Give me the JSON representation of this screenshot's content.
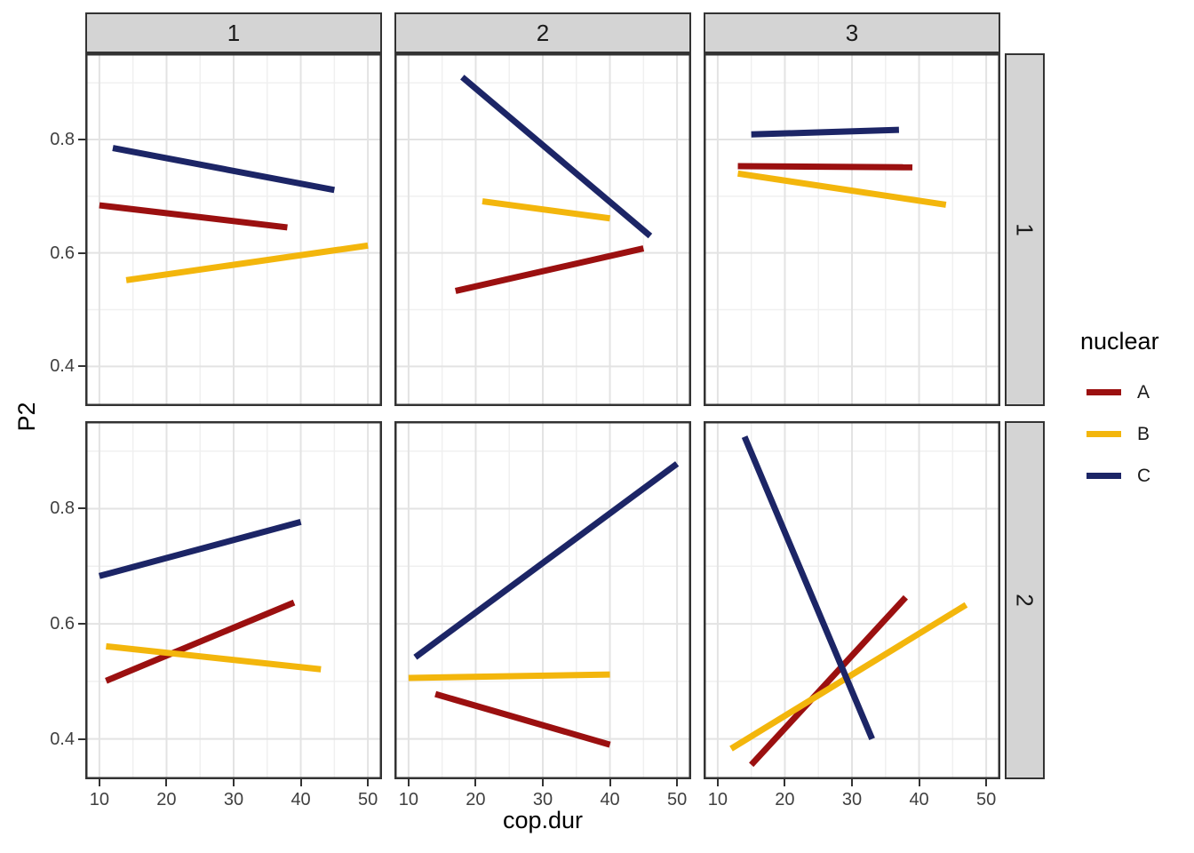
{
  "chart_data": {
    "type": "line",
    "title": "",
    "xlabel": "cop.dur",
    "ylabel": "P2",
    "facet_cols": [
      "1",
      "2",
      "3"
    ],
    "facet_rows": [
      "1",
      "2"
    ],
    "xlim": [
      7.9,
      52.1
    ],
    "ylim": [
      0.33,
      0.952
    ],
    "x_ticks": [
      10,
      20,
      30,
      40,
      50
    ],
    "x_tick_labels": [
      "10",
      "20",
      "30",
      "40",
      "50"
    ],
    "x_minor": [
      15,
      25,
      35,
      45
    ],
    "y_ticks": [
      0.4,
      0.6,
      0.8
    ],
    "y_tick_labels": [
      "0.4",
      "0.6",
      "0.8"
    ],
    "y_minor": [
      0.5,
      0.7,
      0.9
    ],
    "grid": true,
    "colors": {
      "grid_major": "#e3e3e3",
      "grid_minor": "#f0f0f0",
      "panel_border": "#333333",
      "strip_fill": "#d4d4d4",
      "axis_text": "#404040"
    },
    "legend": {
      "title": "nuclear",
      "position": "right",
      "items": [
        {
          "label": "A",
          "color": "#9B1010"
        },
        {
          "label": "B",
          "color": "#F3B60C"
        },
        {
          "label": "C",
          "color": "#1C2566"
        }
      ]
    },
    "panels": [
      {
        "row": "1",
        "col": "1",
        "lines": [
          {
            "series": "A",
            "x": [
              10,
              38
            ],
            "y": [
              0.684,
              0.645
            ]
          },
          {
            "series": "B",
            "x": [
              14,
              50
            ],
            "y": [
              0.552,
              0.613
            ]
          },
          {
            "series": "C",
            "x": [
              12,
              45
            ],
            "y": [
              0.785,
              0.711
            ]
          }
        ]
      },
      {
        "row": "1",
        "col": "2",
        "lines": [
          {
            "series": "A",
            "x": [
              17,
              45
            ],
            "y": [
              0.533,
              0.608
            ]
          },
          {
            "series": "B",
            "x": [
              21,
              40
            ],
            "y": [
              0.691,
              0.661
            ]
          },
          {
            "series": "C",
            "x": [
              18,
              46
            ],
            "y": [
              0.91,
              0.63
            ]
          }
        ]
      },
      {
        "row": "1",
        "col": "3",
        "lines": [
          {
            "series": "A",
            "x": [
              13,
              39
            ],
            "y": [
              0.753,
              0.751
            ]
          },
          {
            "series": "B",
            "x": [
              13,
              44
            ],
            "y": [
              0.74,
              0.685
            ]
          },
          {
            "series": "C",
            "x": [
              15,
              37
            ],
            "y": [
              0.809,
              0.817
            ]
          }
        ]
      },
      {
        "row": "2",
        "col": "1",
        "lines": [
          {
            "series": "A",
            "x": [
              11,
              39
            ],
            "y": [
              0.501,
              0.637
            ]
          },
          {
            "series": "B",
            "x": [
              11,
              43
            ],
            "y": [
              0.561,
              0.521
            ]
          },
          {
            "series": "C",
            "x": [
              10,
              40
            ],
            "y": [
              0.683,
              0.777
            ]
          }
        ]
      },
      {
        "row": "2",
        "col": "2",
        "lines": [
          {
            "series": "A",
            "x": [
              14,
              40
            ],
            "y": [
              0.478,
              0.39
            ]
          },
          {
            "series": "B",
            "x": [
              10,
              40
            ],
            "y": [
              0.506,
              0.512
            ]
          },
          {
            "series": "C",
            "x": [
              11,
              50
            ],
            "y": [
              0.542,
              0.878
            ]
          }
        ]
      },
      {
        "row": "2",
        "col": "3",
        "lines": [
          {
            "series": "A",
            "x": [
              15,
              38
            ],
            "y": [
              0.355,
              0.646
            ]
          },
          {
            "series": "B",
            "x": [
              12,
              47
            ],
            "y": [
              0.383,
              0.633
            ]
          },
          {
            "series": "C",
            "x": [
              14,
              33
            ],
            "y": [
              0.925,
              0.4
            ]
          }
        ]
      }
    ]
  }
}
